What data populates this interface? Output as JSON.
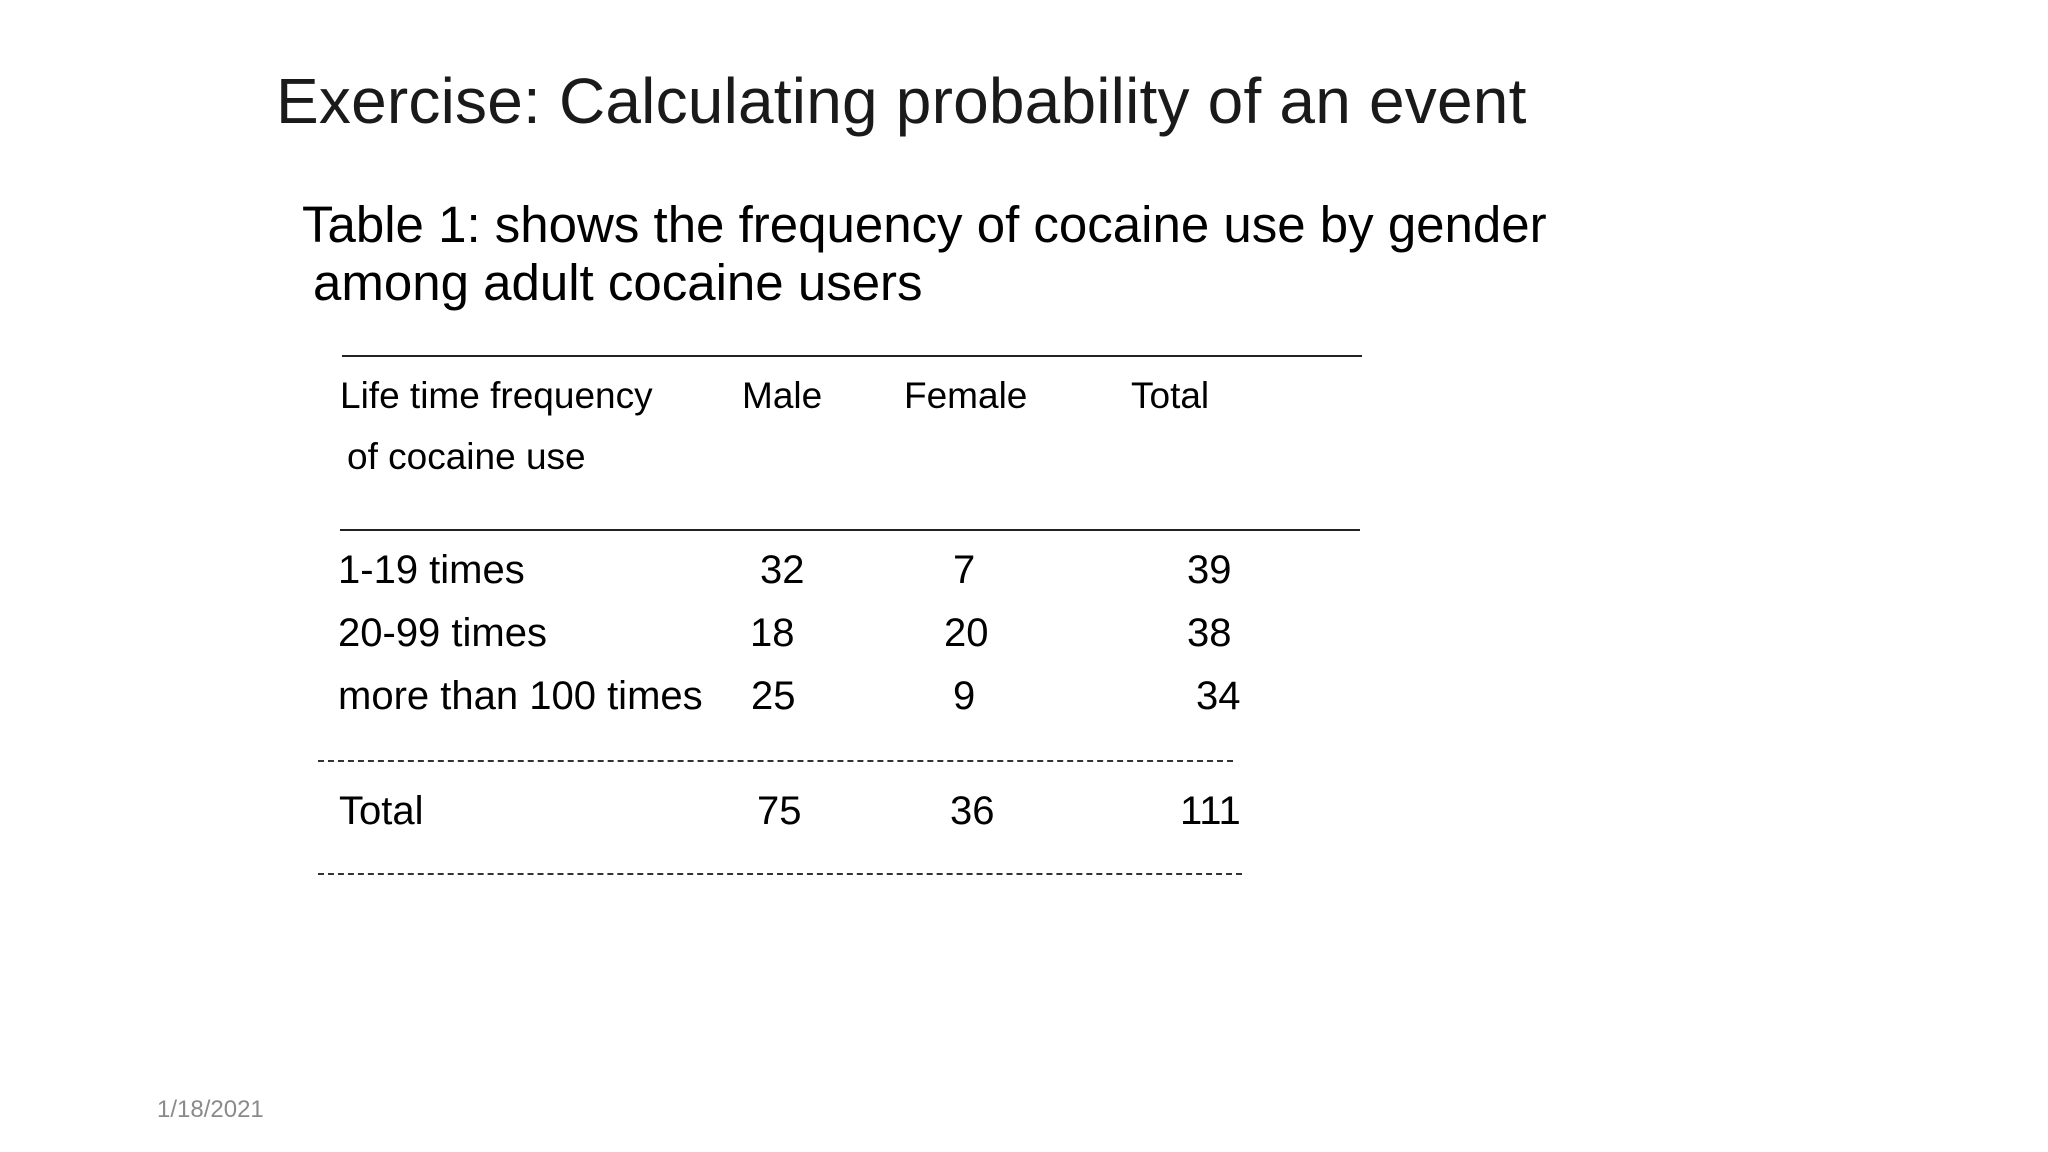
{
  "slide": {
    "title": "Exercise: Calculating probability of an event",
    "caption_line1": "Table 1: shows the frequency of cocaine use by gender",
    "caption_line2": "among adult cocaine users",
    "date": "1/18/2021"
  },
  "table": {
    "headers": {
      "category_line1": "Life time frequency",
      "category_line2": "of cocaine use",
      "male": "Male",
      "female": "Female",
      "total": "Total"
    },
    "rows": [
      {
        "label": "1-19 times",
        "male": "32",
        "female": "7",
        "total": "39"
      },
      {
        "label": "20-99 times",
        "male": "18",
        "female": "20",
        "total": "38"
      },
      {
        "label": "more than 100 times",
        "male": "25",
        "female": "9",
        "total": "34"
      }
    ],
    "totals": {
      "label": "Total",
      "male": "75",
      "female": "36",
      "total": "111"
    }
  }
}
